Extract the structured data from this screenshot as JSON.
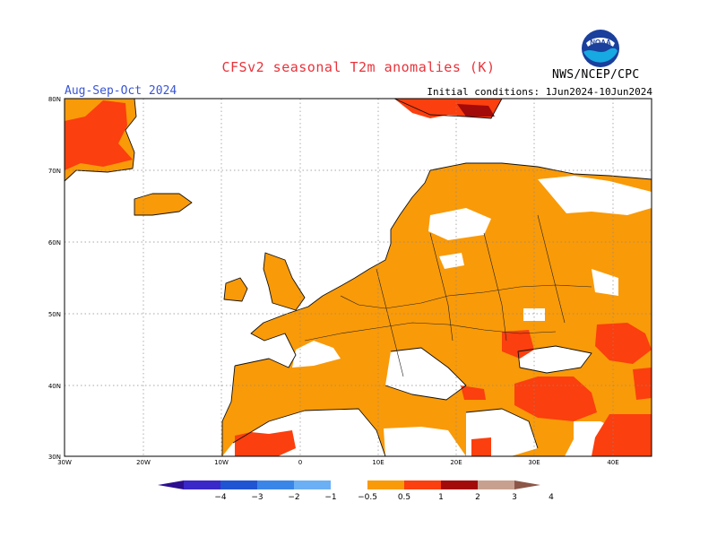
{
  "header": {
    "title": "CFSv2 seasonal T2m anomalies (K)",
    "period": "Aug-Sep-Oct 2024",
    "initial_conditions": "Initial conditions: 1Jun2024-10Jun2024",
    "agency": "NWS/NCEP/CPC",
    "logo_text": "NOAA"
  },
  "map": {
    "lon_labels": [
      "30W",
      "20W",
      "10W",
      "0",
      "10E",
      "20E",
      "30E",
      "40E"
    ],
    "lat_labels": [
      "80N",
      "70N",
      "60N",
      "50N",
      "40N",
      "30N"
    ],
    "lon_range": [
      -30,
      45
    ],
    "lat_range": [
      30,
      80
    ]
  },
  "colorbar": {
    "tick_labels": [
      "−4",
      "−3",
      "−2",
      "−1",
      "−0.5",
      "0.5",
      "1",
      "2",
      "3",
      "4"
    ],
    "colors": [
      "#2b0f8f",
      "#3b28c8",
      "#1f55d3",
      "#3a86e8",
      "#6bb0f5",
      "#ffffff",
      "#f99a08",
      "#fb3f0e",
      "#a30a0a",
      "#c8a090",
      "#8c5648"
    ]
  }
}
